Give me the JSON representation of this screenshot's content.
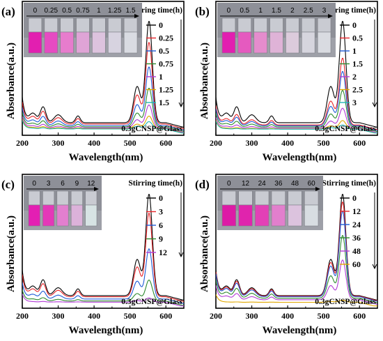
{
  "figure": {
    "colors": {
      "palette": [
        "#000000",
        "#e8252a",
        "#1f5bd6",
        "#2e8b2e",
        "#b23bd6",
        "#e0a800",
        "#1fb5b5"
      ],
      "photo_bg": "#8e9098"
    }
  },
  "chart_data": [
    {
      "type": "line",
      "panel": "(a)",
      "xlabel": "Wavelength(nm)",
      "ylabel": "Absorbance(a.u.)",
      "xlim": [
        200,
        650
      ],
      "xticks": [
        200,
        300,
        400,
        500,
        600
      ],
      "ylim": [
        0,
        1
      ],
      "yticks_shown": false,
      "legend_title": "Stirring time(h)",
      "legend_position": "top-right",
      "sample_label": "0.3gCNSP@Glass",
      "vial_labels": [
        "0",
        "0.25",
        "0.5",
        "0.75",
        "1",
        "1.25",
        "1.5"
      ],
      "vial_colors": [
        "#e21fb0",
        "#e64bc2",
        "#e77ccd",
        "#dfa4d6",
        "#ddc3de",
        "#d7d3e0",
        "#d9dbe2"
      ],
      "series": [
        {
          "name": "0",
          "color": "#000000",
          "peak": 0.97
        },
        {
          "name": "0.25",
          "color": "#e8252a",
          "peak": 0.78
        },
        {
          "name": "0.5",
          "color": "#1f5bd6",
          "peak": 0.56
        },
        {
          "name": "0.75",
          "color": "#2e8b2e",
          "peak": 0.37
        },
        {
          "name": "1",
          "color": "#b23bd6",
          "peak": 0.22
        },
        {
          "name": "1.25",
          "color": "#e0a800",
          "peak": 0.12
        },
        {
          "name": "1.5",
          "color": "#1fb5b5",
          "peak": 0.07
        }
      ],
      "peak_wavelength_nm": 553
    },
    {
      "type": "line",
      "panel": "(b)",
      "xlabel": "Wavelength(nm)",
      "ylabel": "Absorbance(a.u.)",
      "xlim": [
        200,
        650
      ],
      "xticks": [
        200,
        300,
        400,
        500,
        600
      ],
      "ylim": [
        0,
        1
      ],
      "yticks_shown": false,
      "legend_title": "Stirring time(h)",
      "legend_position": "top-right",
      "sample_label": "0.3gCNSP@Glass",
      "vial_labels": [
        "0",
        "0.5",
        "1",
        "1.5",
        "2",
        "2.5",
        "3"
      ],
      "vial_colors": [
        "#e21fb0",
        "#e55abf",
        "#e58ccd",
        "#dfb3d7",
        "#dccbdc",
        "#d6d5de",
        "#d9dbe1"
      ],
      "series": [
        {
          "name": "0",
          "color": "#000000",
          "peak": 0.97
        },
        {
          "name": "0.5",
          "color": "#e8252a",
          "peak": 0.64
        },
        {
          "name": "1",
          "color": "#1f5bd6",
          "peak": 0.52
        },
        {
          "name": "1.5",
          "color": "#2e8b2e",
          "peak": 0.35
        },
        {
          "name": "2",
          "color": "#b23bd6",
          "peak": 0.19
        },
        {
          "name": "2.5",
          "color": "#e0a800",
          "peak": 0.08
        },
        {
          "name": "3",
          "color": "#1fb5b5",
          "peak": 0.04
        }
      ],
      "peak_wavelength_nm": 553
    },
    {
      "type": "line",
      "panel": "(c)",
      "xlabel": "Wavelength(nm)",
      "ylabel": "Absorbance(a.u.)",
      "xlim": [
        200,
        650
      ],
      "xticks": [
        200,
        300,
        400,
        500,
        600
      ],
      "ylim": [
        0,
        1
      ],
      "yticks_shown": false,
      "legend_title": "Stirring time(h)",
      "legend_position": "top-right",
      "sample_label": "0.3gCNSP@Glass",
      "vial_labels": [
        "0",
        "3",
        "6",
        "9",
        "12"
      ],
      "vial_colors": [
        "#e31fb3",
        "#e438b8",
        "#e27fcf",
        "#dcb2da",
        "#d7e3e4"
      ],
      "series": [
        {
          "name": "0",
          "color": "#000000",
          "peak": 0.97
        },
        {
          "name": "3",
          "color": "#e8252a",
          "peak": 0.8
        },
        {
          "name": "6",
          "color": "#1f5bd6",
          "peak": 0.48
        },
        {
          "name": "9",
          "color": "#2e8b2e",
          "peak": 0.2
        },
        {
          "name": "12",
          "color": "#b23bd6",
          "peak": 0.04
        }
      ],
      "peak_wavelength_nm": 553
    },
    {
      "type": "line",
      "panel": "(d)",
      "xlabel": "Wavelength(nm)",
      "ylabel": "Absorbance(a.u.)",
      "xlim": [
        200,
        650
      ],
      "xticks": [
        200,
        300,
        400,
        500,
        600
      ],
      "ylim": [
        0,
        1
      ],
      "yticks_shown": false,
      "legend_title": "Stirring time(h)",
      "legend_position": "top-right",
      "sample_label": "0.3gCNSP@Glass",
      "vial_labels": [
        "0",
        "12",
        "24",
        "36",
        "48",
        "60"
      ],
      "vial_colors": [
        "#dd1aa6",
        "#e024ad",
        "#e340b6",
        "#e27fcd",
        "#dcc3de",
        "#d8dde2"
      ],
      "series": [
        {
          "name": "0",
          "color": "#000000",
          "peak": 0.97
        },
        {
          "name": "12",
          "color": "#e8252a",
          "peak": 0.9
        },
        {
          "name": "24",
          "color": "#1f5bd6",
          "peak": 0.82
        },
        {
          "name": "36",
          "color": "#2e8b2e",
          "peak": 0.6
        },
        {
          "name": "48",
          "color": "#b23bd6",
          "peak": 0.38
        },
        {
          "name": "60",
          "color": "#e0a800",
          "peak": 0.02
        }
      ],
      "peak_wavelength_nm": 553
    }
  ]
}
